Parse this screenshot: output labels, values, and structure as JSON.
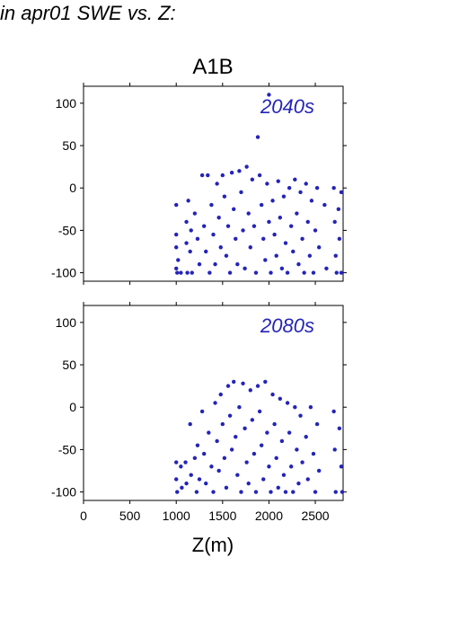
{
  "figure": {
    "title": "in apr01 SWE vs. Z:",
    "scenario_label": "A1B",
    "xlabel": "Z(m)"
  },
  "chart_data": [
    {
      "type": "scatter",
      "panel_label": "2040s",
      "xlim": [
        0,
        2800
      ],
      "ylim": [
        -110,
        120
      ],
      "x_ticks": [
        0,
        500,
        1000,
        1500,
        2000,
        2500
      ],
      "y_ticks": [
        -100,
        -50,
        0,
        50,
        100
      ],
      "marker_color": "#2424b8",
      "points": [
        [
          1000,
          -20
        ],
        [
          1000,
          -55
        ],
        [
          1000,
          -70
        ],
        [
          1000,
          -95
        ],
        [
          1010,
          -100
        ],
        [
          1020,
          -85
        ],
        [
          1050,
          -100
        ],
        [
          1110,
          -40
        ],
        [
          1110,
          -65
        ],
        [
          1120,
          -100
        ],
        [
          1130,
          -15
        ],
        [
          1150,
          -75
        ],
        [
          1160,
          -50
        ],
        [
          1170,
          -100
        ],
        [
          1200,
          -30
        ],
        [
          1230,
          -60
        ],
        [
          1250,
          -90
        ],
        [
          1280,
          15
        ],
        [
          1300,
          -45
        ],
        [
          1320,
          -75
        ],
        [
          1340,
          15
        ],
        [
          1360,
          -100
        ],
        [
          1380,
          -20
        ],
        [
          1400,
          -55
        ],
        [
          1420,
          -90
        ],
        [
          1440,
          5
        ],
        [
          1460,
          -35
        ],
        [
          1480,
          -70
        ],
        [
          1500,
          15
        ],
        [
          1520,
          -10
        ],
        [
          1540,
          -80
        ],
        [
          1560,
          -45
        ],
        [
          1580,
          -100
        ],
        [
          1600,
          18
        ],
        [
          1620,
          -25
        ],
        [
          1640,
          -60
        ],
        [
          1660,
          -90
        ],
        [
          1680,
          20
        ],
        [
          1700,
          -5
        ],
        [
          1720,
          -50
        ],
        [
          1740,
          -95
        ],
        [
          1760,
          25
        ],
        [
          1780,
          -30
        ],
        [
          1800,
          -70
        ],
        [
          1820,
          10
        ],
        [
          1840,
          -45
        ],
        [
          1860,
          -100
        ],
        [
          1880,
          60
        ],
        [
          1900,
          15
        ],
        [
          1920,
          -20
        ],
        [
          1940,
          -60
        ],
        [
          1960,
          -85
        ],
        [
          1980,
          5
        ],
        [
          2000,
          110
        ],
        [
          2000,
          -40
        ],
        [
          2020,
          -100
        ],
        [
          2040,
          -15
        ],
        [
          2060,
          -55
        ],
        [
          2080,
          -80
        ],
        [
          2100,
          8
        ],
        [
          2120,
          -35
        ],
        [
          2140,
          -95
        ],
        [
          2160,
          -10
        ],
        [
          2180,
          -65
        ],
        [
          2200,
          -100
        ],
        [
          2220,
          0
        ],
        [
          2240,
          -45
        ],
        [
          2260,
          -75
        ],
        [
          2280,
          10
        ],
        [
          2300,
          -30
        ],
        [
          2320,
          -90
        ],
        [
          2340,
          -5
        ],
        [
          2360,
          -60
        ],
        [
          2380,
          -100
        ],
        [
          2400,
          5
        ],
        [
          2420,
          -40
        ],
        [
          2440,
          -80
        ],
        [
          2460,
          -15
        ],
        [
          2480,
          -100
        ],
        [
          2500,
          -50
        ],
        [
          2520,
          0
        ],
        [
          2540,
          -70
        ],
        [
          2600,
          -20
        ],
        [
          2620,
          -95
        ],
        [
          2700,
          0
        ],
        [
          2710,
          -40
        ],
        [
          2720,
          -80
        ],
        [
          2730,
          -100
        ],
        [
          2750,
          -25
        ],
        [
          2760,
          -60
        ],
        [
          2780,
          -5
        ],
        [
          2780,
          -100
        ]
      ]
    },
    {
      "type": "scatter",
      "panel_label": "2080s",
      "xlim": [
        0,
        2800
      ],
      "ylim": [
        -110,
        120
      ],
      "x_ticks": [
        0,
        500,
        1000,
        1500,
        2000,
        2500
      ],
      "y_ticks": [
        -100,
        -50,
        0,
        50,
        100
      ],
      "marker_color": "#2424b8",
      "points": [
        [
          1000,
          -65
        ],
        [
          1000,
          -85
        ],
        [
          1010,
          -100
        ],
        [
          1050,
          -70
        ],
        [
          1060,
          -95
        ],
        [
          1100,
          -65
        ],
        [
          1110,
          -90
        ],
        [
          1150,
          -20
        ],
        [
          1160,
          -80
        ],
        [
          1200,
          -60
        ],
        [
          1220,
          -100
        ],
        [
          1230,
          -45
        ],
        [
          1250,
          -85
        ],
        [
          1280,
          -5
        ],
        [
          1300,
          -55
        ],
        [
          1320,
          -90
        ],
        [
          1350,
          -30
        ],
        [
          1380,
          -70
        ],
        [
          1400,
          -100
        ],
        [
          1420,
          5
        ],
        [
          1440,
          -40
        ],
        [
          1460,
          -75
        ],
        [
          1480,
          15
        ],
        [
          1500,
          -20
        ],
        [
          1520,
          -60
        ],
        [
          1540,
          -95
        ],
        [
          1560,
          25
        ],
        [
          1580,
          -10
        ],
        [
          1600,
          -50
        ],
        [
          1620,
          30
        ],
        [
          1640,
          -35
        ],
        [
          1660,
          -80
        ],
        [
          1680,
          0
        ],
        [
          1700,
          -100
        ],
        [
          1720,
          28
        ],
        [
          1740,
          -25
        ],
        [
          1760,
          -65
        ],
        [
          1780,
          -90
        ],
        [
          1800,
          20
        ],
        [
          1820,
          -15
        ],
        [
          1840,
          -55
        ],
        [
          1860,
          -100
        ],
        [
          1880,
          25
        ],
        [
          1900,
          -5
        ],
        [
          1920,
          -45
        ],
        [
          1940,
          -85
        ],
        [
          1960,
          30
        ],
        [
          1980,
          -30
        ],
        [
          2000,
          -70
        ],
        [
          2020,
          -100
        ],
        [
          2040,
          15
        ],
        [
          2060,
          -20
        ],
        [
          2080,
          -60
        ],
        [
          2100,
          -95
        ],
        [
          2120,
          10
        ],
        [
          2140,
          -40
        ],
        [
          2160,
          -80
        ],
        [
          2180,
          -100
        ],
        [
          2200,
          5
        ],
        [
          2220,
          -30
        ],
        [
          2240,
          -70
        ],
        [
          2260,
          -100
        ],
        [
          2280,
          0
        ],
        [
          2300,
          -50
        ],
        [
          2320,
          -90
        ],
        [
          2340,
          -10
        ],
        [
          2360,
          -65
        ],
        [
          2400,
          -35
        ],
        [
          2420,
          -85
        ],
        [
          2450,
          0
        ],
        [
          2480,
          -55
        ],
        [
          2500,
          -100
        ],
        [
          2520,
          -20
        ],
        [
          2540,
          -75
        ],
        [
          2700,
          -5
        ],
        [
          2710,
          -50
        ],
        [
          2720,
          -100
        ],
        [
          2760,
          -25
        ],
        [
          2780,
          -70
        ],
        [
          2790,
          -100
        ]
      ]
    }
  ]
}
